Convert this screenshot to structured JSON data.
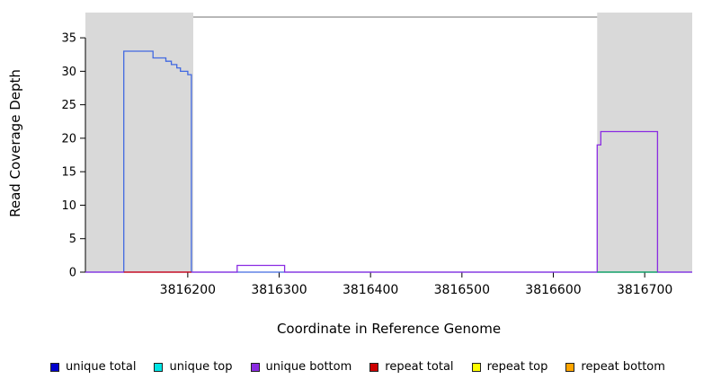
{
  "chart_data": {
    "type": "line",
    "title": "",
    "xlabel": "Coordinate in Reference Genome",
    "ylabel": "Read Coverage Depth",
    "xlim": [
      3816088,
      3816752
    ],
    "ylim": [
      0,
      38.5
    ],
    "grid": false,
    "x_ticks": [
      3816200,
      3816300,
      3816400,
      3816500,
      3816600,
      3816700
    ],
    "y_ticks": [
      0,
      5,
      10,
      15,
      20,
      25,
      30,
      35
    ],
    "shaded_regions": [
      {
        "x0": 3816088,
        "x1": 3816206,
        "color": "#d9d9d9"
      },
      {
        "x0": 3816648,
        "x1": 3816752,
        "color": "#d9d9d9"
      }
    ],
    "cap_line": {
      "x0": 3816206,
      "x1": 3816648,
      "y": 38.1,
      "color": "#8c8c8c"
    },
    "series": [
      {
        "id": "unique-total",
        "name": "unique total trace",
        "color": "#4169e1",
        "points": [
          [
            3816088,
            0
          ],
          [
            3816130,
            0
          ],
          [
            3816130,
            33
          ],
          [
            3816162,
            33
          ],
          [
            3816162,
            32
          ],
          [
            3816176,
            32
          ],
          [
            3816176,
            31.5
          ],
          [
            3816182,
            31.5
          ],
          [
            3816182,
            31
          ],
          [
            3816188,
            31
          ],
          [
            3816188,
            30.5
          ],
          [
            3816192,
            30.5
          ],
          [
            3816192,
            30
          ],
          [
            3816200,
            30
          ],
          [
            3816200,
            29.5
          ],
          [
            3816204,
            29.5
          ],
          [
            3816204,
            0
          ],
          [
            3816752,
            0
          ]
        ]
      },
      {
        "id": "unique-bottom",
        "name": "unique bottom trace",
        "color": "#8a2be2",
        "points": [
          [
            3816088,
            0
          ],
          [
            3816254,
            0
          ],
          [
            3816254,
            1
          ],
          [
            3816306,
            1
          ],
          [
            3816306,
            0
          ],
          [
            3816648,
            0
          ],
          [
            3816648,
            19
          ],
          [
            3816652,
            19
          ],
          [
            3816652,
            21
          ],
          [
            3816714,
            21
          ],
          [
            3816714,
            0
          ],
          [
            3816752,
            0
          ]
        ]
      },
      {
        "id": "repeat-total",
        "name": "repeat total trace",
        "color": "#cd0000",
        "points": [
          [
            3816130,
            0
          ],
          [
            3816204,
            0
          ]
        ]
      },
      {
        "id": "baseline-green-segment",
        "name": "green baseline segment",
        "color": "#00a550",
        "points": [
          [
            3816648,
            0
          ],
          [
            3816714,
            0
          ]
        ]
      }
    ],
    "legend": [
      {
        "label": "unique total",
        "color": "#0000cd"
      },
      {
        "label": "unique top",
        "color": "#00e5e5"
      },
      {
        "label": "unique bottom",
        "color": "#8a2be2"
      },
      {
        "label": "repeat total",
        "color": "#cd0000"
      },
      {
        "label": "repeat top",
        "color": "#ffff00"
      },
      {
        "label": "repeat bottom",
        "color": "#ffa500"
      }
    ],
    "legend_position": "bottom"
  }
}
